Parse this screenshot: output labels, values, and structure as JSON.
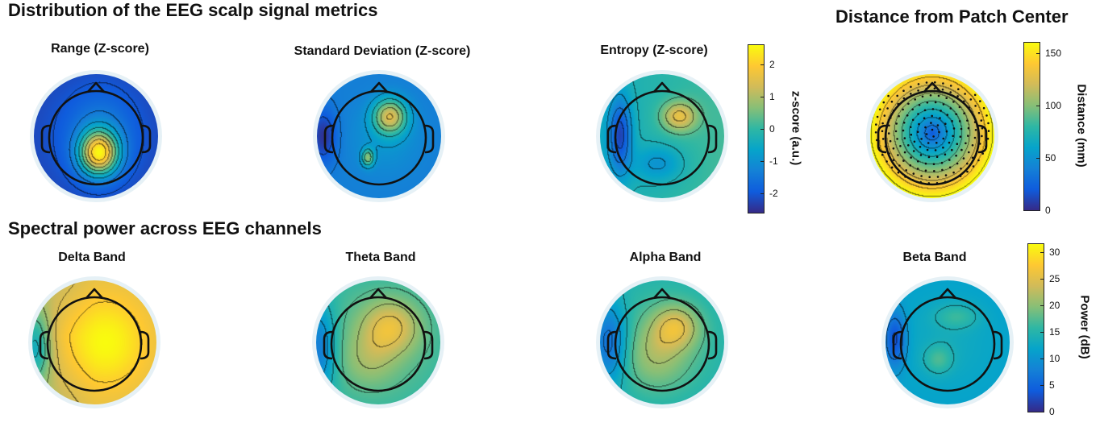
{
  "titles": {
    "section_metrics": "Distribution of the EEG scalp signal metrics",
    "section_distance": "Distance from Patch Center",
    "section_spectral": "Spectral power across EEG channels"
  },
  "maps": {
    "range": {
      "title": "Range (Z-score)"
    },
    "std": {
      "title": "Standard Deviation (Z-score)"
    },
    "entropy": {
      "title": "Entropy (Z-score)"
    },
    "distance": {
      "title": ""
    },
    "delta": {
      "title": "Delta Band"
    },
    "theta": {
      "title": "Theta Band"
    },
    "alpha": {
      "title": "Alpha Band"
    },
    "beta": {
      "title": "Beta Band"
    }
  },
  "colorbars": {
    "zscore": {
      "label": "z-score (a.u.)",
      "range": [
        -2.6,
        2.6
      ],
      "ticks": [
        "2",
        "1",
        "0",
        "-1",
        "-2"
      ],
      "tick_values": [
        2,
        1,
        0,
        -1,
        -2
      ]
    },
    "distance": {
      "label": "Distance (mm)",
      "range": [
        0,
        160
      ],
      "ticks": [
        "150",
        "100",
        "50",
        "0"
      ],
      "tick_values": [
        150,
        100,
        50,
        0
      ]
    },
    "power": {
      "label": "Power (dB)",
      "range": [
        0,
        31.5
      ],
      "ticks": [
        "30",
        "25",
        "20",
        "15",
        "10",
        "5",
        "0"
      ],
      "tick_values": [
        30,
        25,
        20,
        15,
        10,
        5,
        0
      ]
    }
  },
  "colormap": "parula",
  "colors": {
    "parula": [
      "#352a87",
      "#0f5cdd",
      "#1481d6",
      "#06a4ca",
      "#2eb7a4",
      "#87bf77",
      "#d1bb59",
      "#fec832",
      "#f9fb0e"
    ],
    "outline": "#111111",
    "halo": "#e6f1f6"
  }
}
